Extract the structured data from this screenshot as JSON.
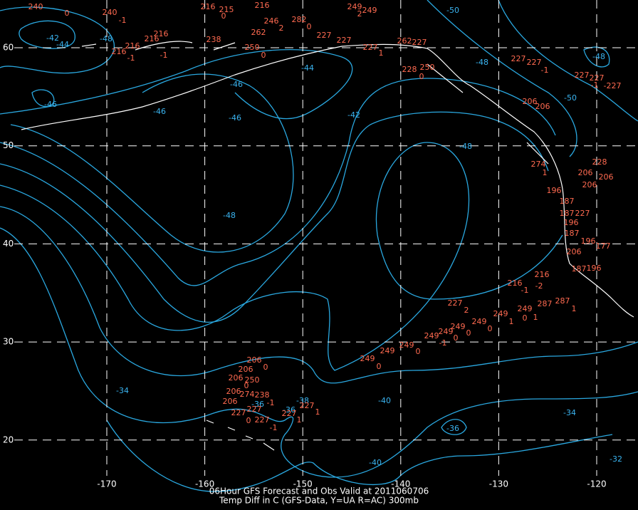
{
  "map": {
    "lat_ticks": [
      60,
      50,
      40,
      30,
      20
    ],
    "lon_ticks": [
      -170,
      -160,
      -150,
      -140,
      -130,
      -120
    ],
    "caption": [
      "06Hour GFS Forecast and Obs Valid at 2011060706",
      "Temp Diff in C (GFS-Data, Y=UA R=AC) 300mb"
    ],
    "contour_labels": [
      "-42",
      "-44",
      "-48",
      "-46",
      "-46",
      "-46",
      "-44",
      "-46",
      "-42",
      "-48",
      "-50",
      "-48",
      "-50",
      "-48",
      "-48",
      "-34",
      "-36",
      "-38",
      "-36",
      "-40",
      "-36",
      "-40",
      "-34",
      "-32"
    ],
    "station_labels": [
      "240",
      "0",
      "240",
      "-1",
      "216",
      "215",
      "0",
      "216",
      "249",
      "249",
      "2",
      "246",
      "262",
      "2",
      "282",
      "0",
      "238",
      "250",
      "0",
      "227",
      "227",
      "227",
      "1",
      "262",
      "227",
      "216",
      "216",
      "216",
      "216",
      "-1",
      "-1",
      "228",
      "250",
      "0",
      "227",
      "227",
      "-1",
      "227",
      "227",
      "-1",
      "-227",
      "206",
      "206",
      "274",
      "1",
      "228",
      "206",
      "206",
      "206",
      "196",
      "187",
      "187",
      "227",
      "196",
      "187",
      "196",
      "206",
      "177",
      "196",
      "187",
      "216",
      "-1",
      "-2",
      "216",
      "227",
      "2",
      "249",
      "0",
      "249",
      "249",
      "0",
      "1",
      "287",
      "287",
      "1",
      "1",
      "249",
      "249",
      "249",
      "-1",
      "0",
      "0",
      "249",
      "249",
      "0",
      "249",
      "0",
      "206",
      "0",
      "206",
      "206",
      "0",
      "250",
      "206",
      "274",
      "238",
      "206",
      "-1",
      "227",
      "227",
      "0",
      "227",
      "-1",
      "227",
      "227",
      "1",
      "1"
    ]
  }
}
